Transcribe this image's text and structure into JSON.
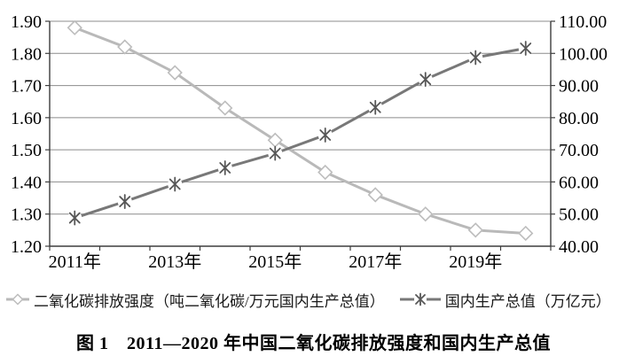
{
  "chart_data": {
    "type": "line",
    "title": "",
    "categories": [
      "2011",
      "2012",
      "2013",
      "2014",
      "2015",
      "2016",
      "2017",
      "2018",
      "2019",
      "2020"
    ],
    "x_tick_labels": [
      {
        "index": 0,
        "label": "2011年"
      },
      {
        "index": 2,
        "label": "2013年"
      },
      {
        "index": 4,
        "label": "2015年"
      },
      {
        "index": 6,
        "label": "2017年"
      },
      {
        "index": 8,
        "label": "2019年"
      }
    ],
    "series": [
      {
        "name": "二氧化碳排放强度（吨二氧化碳/万元国内生产总值）",
        "axis": "left",
        "marker": "diamond",
        "color": "#b9b9b9",
        "marker_color": "#bdbdbd",
        "values": [
          1.88,
          1.82,
          1.74,
          1.63,
          1.53,
          1.43,
          1.36,
          1.3,
          1.25,
          1.24
        ]
      },
      {
        "name": "国内生产总值（万亿元）",
        "axis": "right",
        "marker": "asterisk",
        "color": "#787878",
        "marker_color": "#575757",
        "values": [
          48.8,
          53.9,
          59.3,
          64.4,
          68.9,
          74.6,
          83.2,
          91.9,
          98.7,
          101.6
        ]
      }
    ],
    "left_axis": {
      "min": 1.2,
      "max": 1.9,
      "step": 0.1,
      "tick_labels": [
        "1.20",
        "1.30",
        "1.40",
        "1.50",
        "1.60",
        "1.70",
        "1.80",
        "1.90"
      ]
    },
    "right_axis": {
      "min": 40,
      "max": 110,
      "step": 10,
      "tick_labels": [
        "40.00",
        "50.00",
        "60.00",
        "70.00",
        "80.00",
        "90.00",
        "100.00",
        "110.00"
      ]
    },
    "grid": true,
    "legend_position": "bottom",
    "colors": {
      "grid": "#8c8c8c",
      "axis": "#3d3d3d",
      "text": "#000000",
      "marker_fill": "#ffffff"
    }
  },
  "caption": {
    "text": "图 1　2011—2020 年中国二氧化碳排放强度和国内生产总值"
  }
}
